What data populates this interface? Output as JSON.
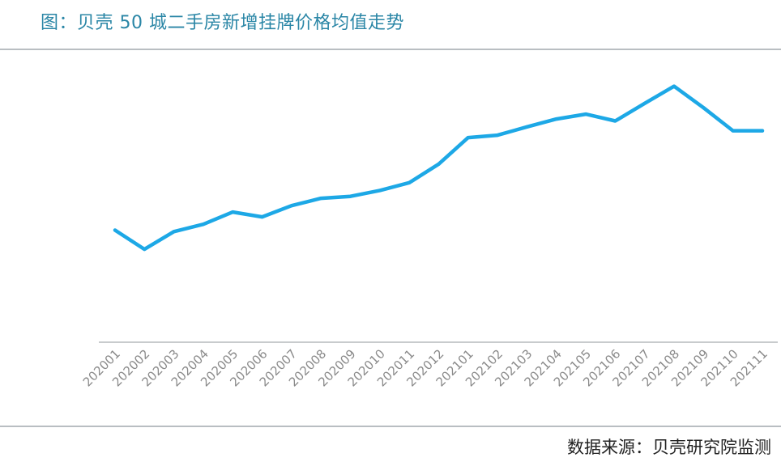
{
  "title": "图：贝壳 50 城二手房新增挂牌价格均值走势",
  "source": "数据来源：贝壳研究院监测",
  "colors": {
    "line": "#1da8e6",
    "title": "#2a86a6",
    "axis": "#c8cbcd",
    "tick_text": "#8a8a8a",
    "rule": "#b9bec2"
  },
  "chart_data": {
    "type": "line",
    "title": "图：贝壳 50 城二手房新增挂牌价格均值走势",
    "xlabel": "",
    "ylabel": "",
    "categories": [
      "202001",
      "202002",
      "202003",
      "202004",
      "202005",
      "202006",
      "202007",
      "202008",
      "202009",
      "202010",
      "202011",
      "202012",
      "202101",
      "202102",
      "202103",
      "202104",
      "202105",
      "202106",
      "202107",
      "202108",
      "202109",
      "202110",
      "202111"
    ],
    "series": [
      {
        "values": [
          45.8,
          38.0,
          45.2,
          48.2,
          53.2,
          51.2,
          55.8,
          58.8,
          59.6,
          62.0,
          65.2,
          72.8,
          83.6,
          84.6,
          88.0,
          91.2,
          93.2,
          90.4,
          97.6,
          104.6,
          95.8,
          86.4,
          86.4
        ]
      }
    ],
    "ylim": [
      0,
      120
    ],
    "y_axis_visible": false,
    "grid": false,
    "legend": "none"
  }
}
